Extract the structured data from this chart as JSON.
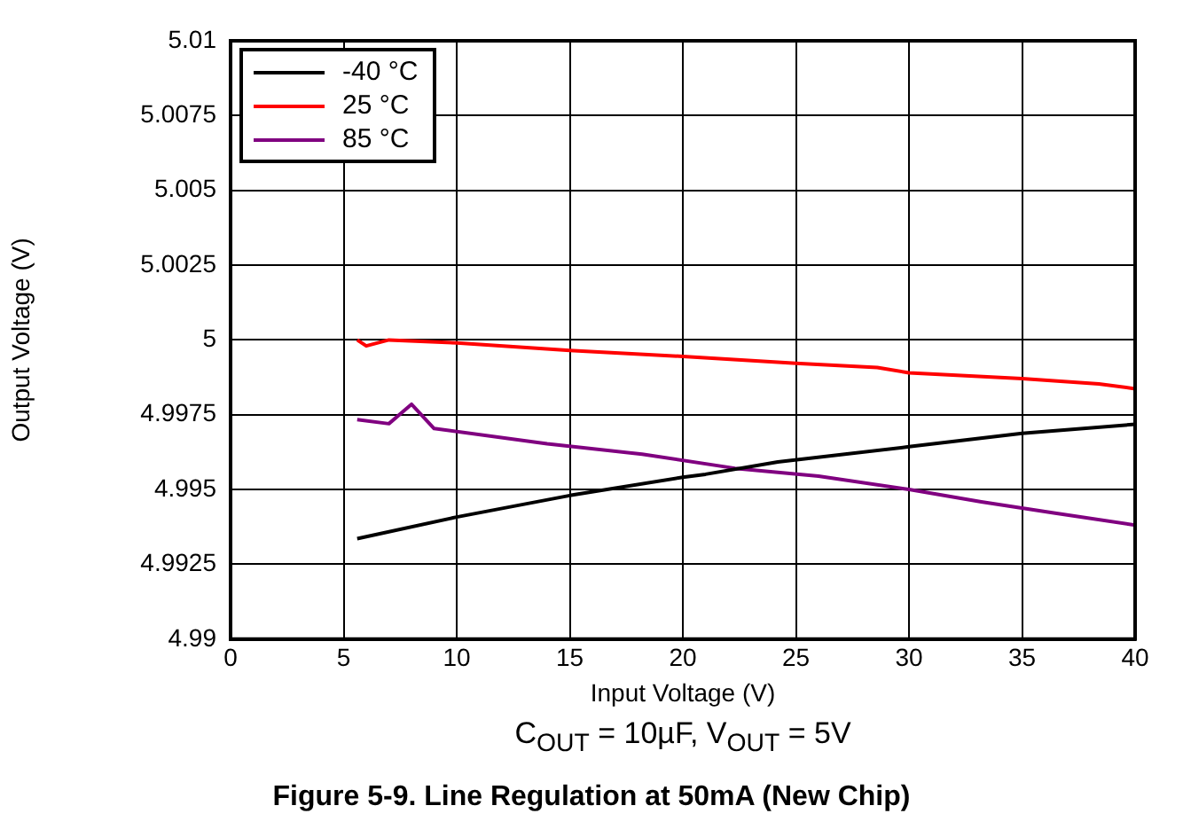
{
  "chart_data": {
    "type": "line",
    "title": "Figure 5-9. Line Regulation at 50mA (New Chip)",
    "xlabel": "Input Voltage (V)",
    "ylabel": "Output Voltage (V)",
    "annotations": [
      "C$_{OUT}$ = 10µF, V$_{OUT}$ = 5V"
    ],
    "xlim": [
      0,
      40
    ],
    "xticks": [
      0,
      5,
      10,
      15,
      20,
      25,
      30,
      35,
      40
    ],
    "ylim": [
      4.99,
      5.01
    ],
    "yticks": [
      4.99,
      4.9925,
      4.995,
      4.9975,
      5,
      5.0025,
      5.005,
      5.0075,
      5.01
    ],
    "grid": true,
    "legend": "top left",
    "marker": "none",
    "line_style": "solid",
    "series": [
      {
        "name": "-40 °C",
        "color": "#000000",
        "x": [
          5.6,
          10,
          15,
          20,
          21,
          24.2,
          30,
          35,
          40
        ],
        "values": [
          4.99336,
          4.99408,
          4.9948,
          4.99541,
          4.99551,
          4.99592,
          4.99643,
          4.99688,
          4.99718
        ]
      },
      {
        "name": "25 °C",
        "color": "#ff0000",
        "x": [
          5.6,
          6,
          7,
          10,
          15,
          20,
          25,
          28.6,
          30,
          35,
          38.4,
          40
        ],
        "values": [
          5.0,
          4.9998,
          5.0,
          4.9999,
          4.99965,
          4.99945,
          4.99922,
          4.99908,
          4.9989,
          4.99871,
          4.99853,
          4.99837
        ]
      },
      {
        "name": "85 °C",
        "color": "#800080",
        "x": [
          5.6,
          7,
          8,
          9,
          14,
          18.2,
          22.3,
          26,
          30,
          33.2,
          36.4,
          40
        ],
        "values": [
          4.99734,
          4.9972,
          4.99785,
          4.99704,
          4.99653,
          4.99618,
          4.99571,
          4.99545,
          4.995,
          4.99459,
          4.99422,
          4.99381
        ]
      }
    ]
  }
}
